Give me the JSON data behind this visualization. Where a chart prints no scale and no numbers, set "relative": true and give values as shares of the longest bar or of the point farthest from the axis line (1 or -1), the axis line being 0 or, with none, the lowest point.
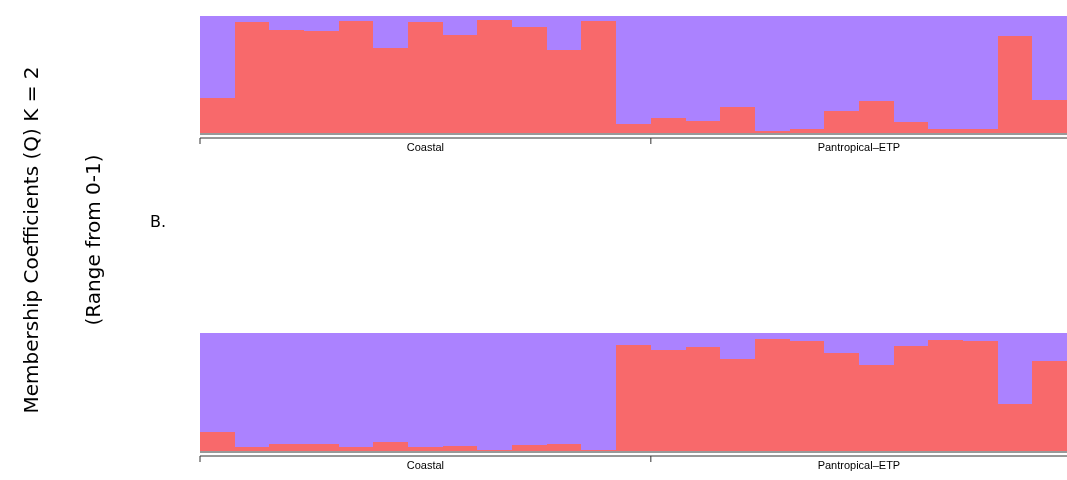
{
  "chart_data": [
    {
      "type": "bar",
      "stacked": true,
      "relative": true,
      "ylabel": "Membership Coefficients (Q) K = 2\n(Range from 0-1)",
      "annotations": [
        "Coastal",
        "Pantropical–ETP"
      ],
      "categories": [
        null,
        null,
        null,
        null,
        null,
        null,
        null,
        null,
        null,
        null,
        null,
        null,
        null,
        null,
        null,
        null,
        null,
        null,
        null,
        null,
        null,
        null,
        null,
        null,
        null
      ],
      "series": [
        {
          "color": "#f8696b",
          "values": [
            0.3,
            0.95,
            0.88,
            0.87,
            0.96,
            0.73,
            0.95,
            0.84,
            0.97,
            0.91,
            0.71,
            0.96,
            0.08,
            0.13,
            0.1,
            0.22,
            0.02,
            0.03,
            0.19,
            0.27,
            0.09,
            0.03,
            0.03,
            0.83,
            0.28
          ]
        },
        {
          "color": "#ab82ff",
          "values": [
            0.7,
            0.05,
            0.12,
            0.13,
            0.04,
            0.27,
            0.05,
            0.16,
            0.03,
            0.09,
            0.29,
            0.04,
            0.92,
            0.87,
            0.9,
            0.78,
            0.98,
            0.97,
            0.81,
            0.73,
            0.91,
            0.97,
            0.97,
            0.17,
            0.72
          ]
        }
      ]
    },
    {
      "type": "bar",
      "stacked": true,
      "relative": true,
      "title": "B.",
      "annotations": [
        "Coastal",
        "Pantropical–ETP"
      ],
      "categories": [
        null,
        null,
        null,
        null,
        null,
        null,
        null,
        null,
        null,
        null,
        null,
        null,
        null,
        null,
        null,
        null,
        null,
        null,
        null,
        null,
        null,
        null,
        null,
        null,
        null
      ],
      "series": [
        {
          "color": "#f8696b",
          "values": [
            0.16,
            0.03,
            0.06,
            0.06,
            0.03,
            0.08,
            0.03,
            0.04,
            0.01,
            0.05,
            0.06,
            0.01,
            0.9,
            0.86,
            0.88,
            0.78,
            0.95,
            0.93,
            0.83,
            0.73,
            0.89,
            0.94,
            0.93,
            0.4,
            0.76
          ]
        },
        {
          "color": "#ab82ff",
          "values": [
            0.84,
            0.97,
            0.94,
            0.94,
            0.97,
            0.92,
            0.97,
            0.96,
            0.99,
            0.95,
            0.94,
            0.99,
            0.1,
            0.14,
            0.12,
            0.22,
            0.05,
            0.07,
            0.17,
            0.27,
            0.11,
            0.06,
            0.07,
            0.6,
            0.24
          ]
        }
      ]
    }
  ]
}
